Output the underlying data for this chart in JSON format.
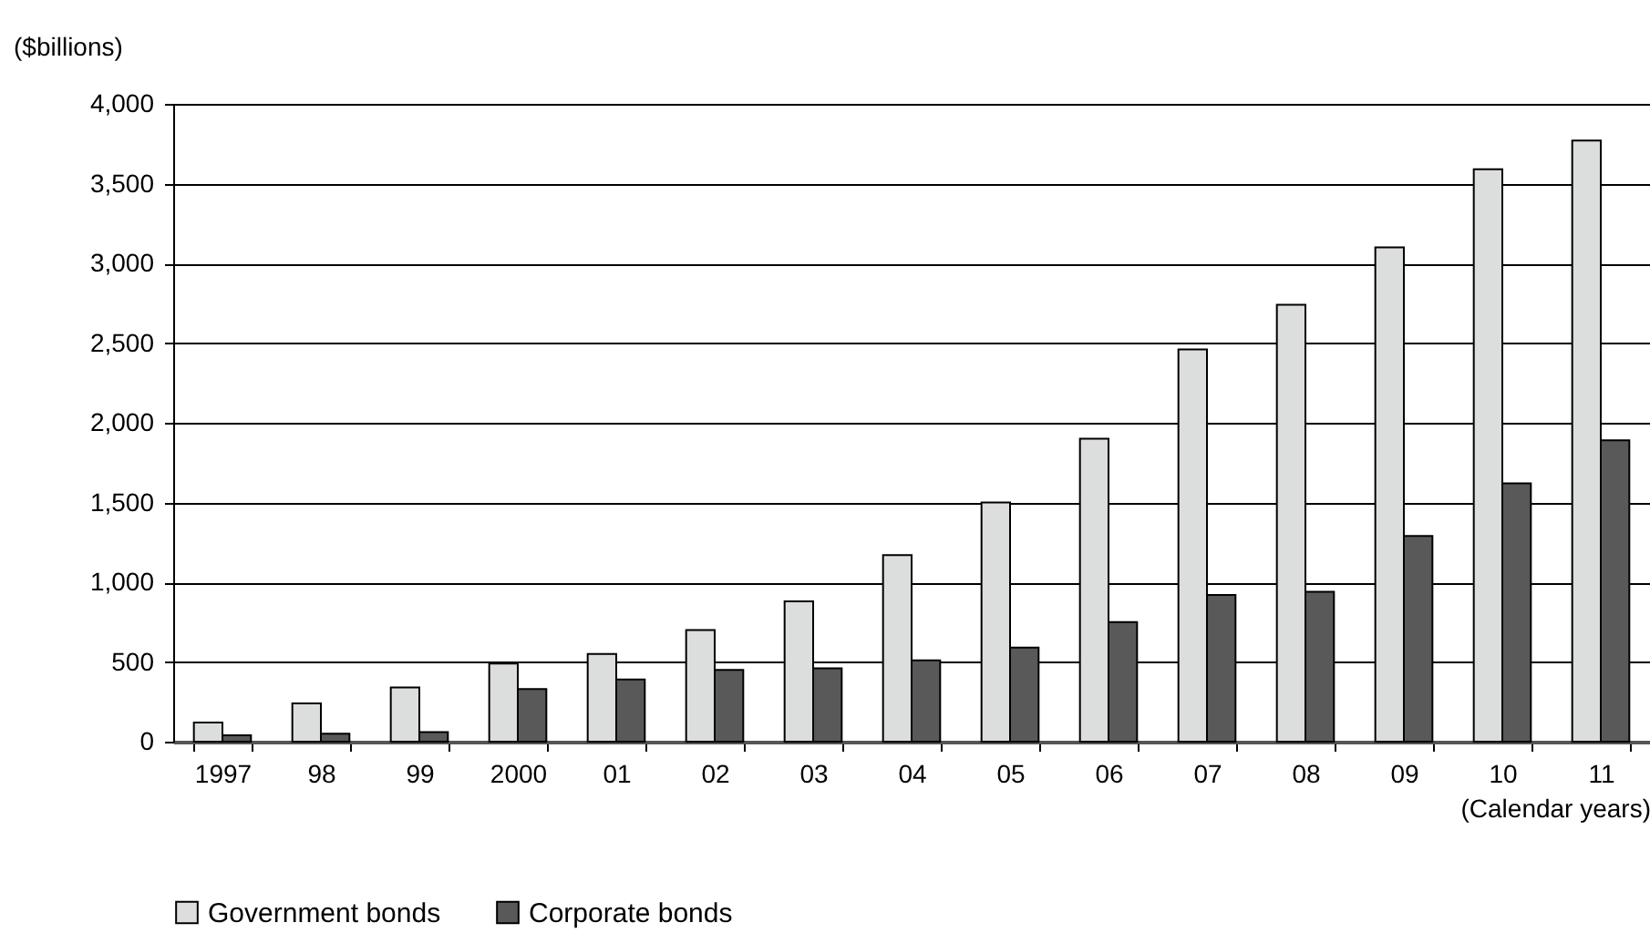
{
  "chart_data": {
    "type": "bar",
    "ylabel": "($billions)",
    "xlabel": "(Calendar years)",
    "categories": [
      "1997",
      "98",
      "99",
      "2000",
      "01",
      "02",
      "03",
      "04",
      "05",
      "06",
      "07",
      "08",
      "09",
      "10",
      "11"
    ],
    "series": [
      {
        "name": "Government bonds",
        "color": "#dcdddd",
        "values": [
          120,
          240,
          340,
          490,
          550,
          700,
          880,
          1170,
          1500,
          1900,
          2460,
          2740,
          3100,
          3590,
          3770
        ]
      },
      {
        "name": "Corporate bonds",
        "color": "#595959",
        "values": [
          40,
          50,
          60,
          330,
          390,
          450,
          460,
          510,
          590,
          750,
          920,
          940,
          1290,
          1620,
          1890
        ]
      }
    ],
    "ylim": [
      0,
      4000
    ],
    "yticks": [
      0,
      {
        "value": 500,
        "label": "500"
      },
      {
        "value": 1000,
        "label": "1,000"
      },
      {
        "value": 1500,
        "label": "1,500"
      },
      {
        "value": 2000,
        "label": "2,000"
      },
      {
        "value": 2500,
        "label": "2,500"
      },
      {
        "value": 3000,
        "label": "3,000"
      },
      {
        "value": 3500,
        "label": "3,500"
      },
      {
        "value": 4000,
        "label": "4,000"
      }
    ],
    "grid": "y",
    "legend": "bottom"
  }
}
